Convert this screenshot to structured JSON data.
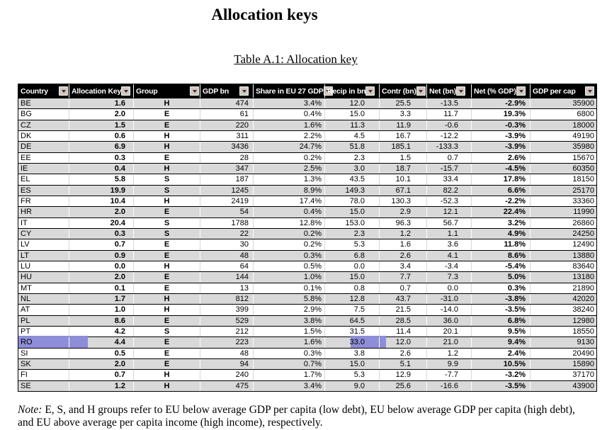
{
  "page": {
    "title": "Allocation keys",
    "table_caption": "Table A.1: Allocation key",
    "note_label": "Note:",
    "note_text": " E, S, and H groups refer to EU below average GDP per capita (low debt), EU below average GDP per capita (high debt), and EU above average per capita income (high income), respectively."
  },
  "colors": {
    "header_bg": "#000000",
    "header_text": "#ffffff",
    "row_alt_bg": "#d9d9d9",
    "highlight": "#8d8dd8",
    "filter_btn_bg": "#ccc9c2",
    "filter_arrow": "#4d2020"
  },
  "table": {
    "columns": [
      {
        "key": "country",
        "label": "Country"
      },
      {
        "key": "allocation_key",
        "label": "Allocation Key"
      },
      {
        "key": "group",
        "label": "Group"
      },
      {
        "key": "gdp_bn",
        "label": "GDP bn"
      },
      {
        "key": "share_eu27_gdp",
        "label": "Share in EU 27 GDP"
      },
      {
        "key": "recip_bn",
        "label": "Recip in bn"
      },
      {
        "key": "contr_bn",
        "label": "Contr (bn)"
      },
      {
        "key": "net_bn",
        "label": "Net (bn)"
      },
      {
        "key": "net_pct_gdp",
        "label": "Net (% GDP)"
      },
      {
        "key": "gdp_per_cap",
        "label": "GDP per cap"
      }
    ],
    "rows": [
      [
        "BE",
        "1.6",
        "H",
        "474",
        "3.4%",
        "12.0",
        "25.5",
        "-13.5",
        "-2.9%",
        "35900"
      ],
      [
        "BG",
        "2.0",
        "E",
        "61",
        "0.4%",
        "15.0",
        "3.3",
        "11.7",
        "19.3%",
        "6800"
      ],
      [
        "CZ",
        "1.5",
        "E",
        "220",
        "1.6%",
        "11.3",
        "11.9",
        "-0.6",
        "-0.3%",
        "18000"
      ],
      [
        "DK",
        "0.6",
        "H",
        "311",
        "2.2%",
        "4.5",
        "16.7",
        "-12.2",
        "-3.9%",
        "49190"
      ],
      [
        "DE",
        "6.9",
        "H",
        "3436",
        "24.7%",
        "51.8",
        "185.1",
        "-133.3",
        "-3.9%",
        "35980"
      ],
      [
        "EE",
        "0.3",
        "E",
        "28",
        "0.2%",
        "2.3",
        "1.5",
        "0.7",
        "2.6%",
        "15670"
      ],
      [
        "IE",
        "0.4",
        "H",
        "347",
        "2.5%",
        "3.0",
        "18.7",
        "-15.7",
        "-4.5%",
        "60350"
      ],
      [
        "EL",
        "5.8",
        "S",
        "187",
        "1.3%",
        "43.5",
        "10.1",
        "33.4",
        "17.8%",
        "18150"
      ],
      [
        "ES",
        "19.9",
        "S",
        "1245",
        "8.9%",
        "149.3",
        "67.1",
        "82.2",
        "6.6%",
        "25170"
      ],
      [
        "FR",
        "10.4",
        "H",
        "2419",
        "17.4%",
        "78.0",
        "130.3",
        "-52.3",
        "-2.2%",
        "33360"
      ],
      [
        "HR",
        "2.0",
        "E",
        "54",
        "0.4%",
        "15.0",
        "2.9",
        "12.1",
        "22.4%",
        "11990"
      ],
      [
        "IT",
        "20.4",
        "S",
        "1788",
        "12.8%",
        "153.0",
        "96.3",
        "56.7",
        "3.2%",
        "26860"
      ],
      [
        "CY",
        "0.3",
        "S",
        "22",
        "0.2%",
        "2.3",
        "1.2",
        "1.1",
        "4.9%",
        "24250"
      ],
      [
        "LV",
        "0.7",
        "E",
        "30",
        "0.2%",
        "5.3",
        "1.6",
        "3.6",
        "11.8%",
        "12490"
      ],
      [
        "LT",
        "0.9",
        "E",
        "48",
        "0.3%",
        "6.8",
        "2.6",
        "4.1",
        "8.6%",
        "13880"
      ],
      [
        "LU",
        "0.0",
        "H",
        "64",
        "0.5%",
        "0.0",
        "3.4",
        "-3.4",
        "-5.4%",
        "83640"
      ],
      [
        "HU",
        "2.0",
        "E",
        "144",
        "1.0%",
        "15.0",
        "7.7",
        "7.3",
        "5.0%",
        "13180"
      ],
      [
        "MT",
        "0.1",
        "E",
        "13",
        "0.1%",
        "0.8",
        "0.7",
        "0.0",
        "0.3%",
        "21890"
      ],
      [
        "NL",
        "1.7",
        "H",
        "812",
        "5.8%",
        "12.8",
        "43.7",
        "-31.0",
        "-3.8%",
        "42020"
      ],
      [
        "AT",
        "1.0",
        "H",
        "399",
        "2.9%",
        "7.5",
        "21.5",
        "-14.0",
        "-3.5%",
        "38240"
      ],
      [
        "PL",
        "8.6",
        "E",
        "529",
        "3.8%",
        "64.5",
        "28.5",
        "36.0",
        "6.8%",
        "12980"
      ],
      [
        "PT",
        "4.2",
        "S",
        "212",
        "1.5%",
        "31.5",
        "11.4",
        "20.1",
        "9.5%",
        "18550"
      ],
      [
        "RO",
        "4.4",
        "E",
        "223",
        "1.6%",
        "33.0",
        "12.0",
        "21.0",
        "9.4%",
        "9130"
      ],
      [
        "SI",
        "0.5",
        "E",
        "48",
        "0.3%",
        "3.8",
        "2.6",
        "1.2",
        "2.4%",
        "20490"
      ],
      [
        "SK",
        "2.0",
        "E",
        "94",
        "0.7%",
        "15.0",
        "5.1",
        "9.9",
        "10.5%",
        "15890"
      ],
      [
        "FI",
        "0.7",
        "H",
        "240",
        "1.7%",
        "5.3",
        "12.9",
        "-7.7",
        "-3.2%",
        "37170"
      ],
      [
        "SE",
        "1.2",
        "H",
        "475",
        "3.4%",
        "9.0",
        "25.6",
        "-16.6",
        "-3.5%",
        "43900"
      ]
    ],
    "highlight": {
      "row": "RO",
      "cells": [
        "country",
        "recip_bn"
      ]
    }
  }
}
